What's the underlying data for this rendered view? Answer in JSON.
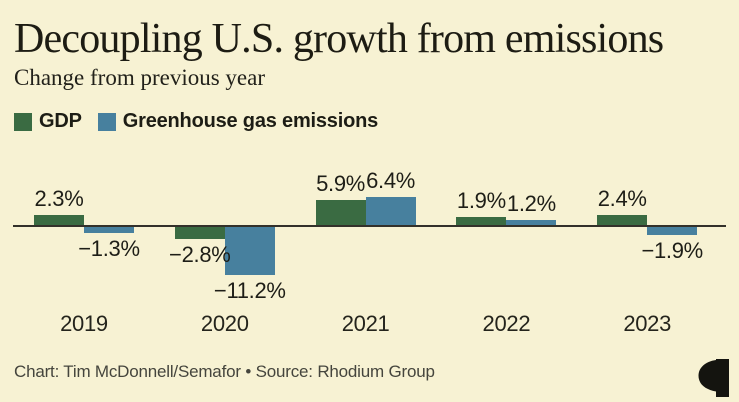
{
  "page": {
    "background": "#f7f2d3"
  },
  "header": {
    "title": "Decoupling U.S. growth from emissions",
    "subtitle": "Change from previous year"
  },
  "legend": {
    "items": [
      {
        "label": "GDP",
        "color": "#3a6b42"
      },
      {
        "label": "Greenhouse gas emissions",
        "color": "#47809e"
      }
    ]
  },
  "chart_data": {
    "type": "bar",
    "title": "Decoupling U.S. growth from emissions",
    "subtitle": "Change from previous year",
    "categories": [
      "2019",
      "2020",
      "2021",
      "2022",
      "2023"
    ],
    "series": [
      {
        "name": "GDP",
        "color": "#3a6b42",
        "values": [
          2.3,
          -2.8,
          5.9,
          1.9,
          2.4
        ],
        "labels": [
          "2.3%",
          "−2.8%",
          "5.9%",
          "1.9%",
          "2.4%"
        ]
      },
      {
        "name": "Greenhouse gas emissions",
        "color": "#47809e",
        "values": [
          -1.3,
          -11.2,
          6.4,
          1.2,
          -1.9
        ],
        "labels": [
          "−1.3%",
          "−11.2%",
          "6.4%",
          "1.2%",
          "−1.9%"
        ]
      }
    ],
    "value_suffix": "%",
    "baseline": 0,
    "ylim": [
      -12,
      7
    ],
    "grid": false,
    "legend_position": "top-left",
    "xlabel": "",
    "ylabel": "",
    "axis_color": "#33312a"
  },
  "footer": {
    "credit": "Chart: Tim McDonnell/Semafor • Source: Rhodium Group",
    "logo": "semafor-logo"
  }
}
